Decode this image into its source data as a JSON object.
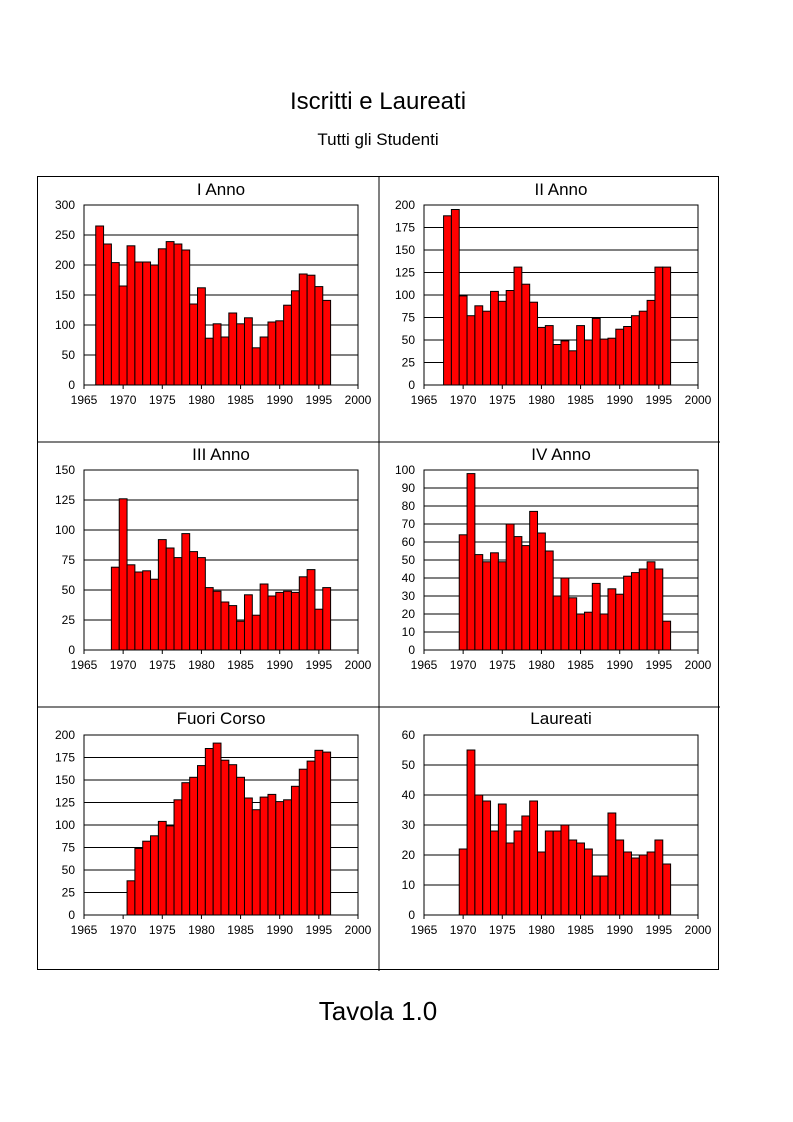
{
  "page": {
    "title": "Iscritti e Laureati",
    "subtitle": "Tutti gli Studenti",
    "footer": "Tavola 1.0"
  },
  "colors": {
    "bar_fill": "#ff0000",
    "bar_stroke": "#000000",
    "grid": "#000000"
  },
  "chart_data": [
    {
      "type": "bar",
      "title": "I Anno",
      "x": [
        1967,
        1968,
        1969,
        1970,
        1971,
        1972,
        1973,
        1974,
        1975,
        1976,
        1977,
        1978,
        1979,
        1980,
        1981,
        1982,
        1983,
        1984,
        1985,
        1986,
        1987,
        1988,
        1989,
        1990,
        1991,
        1992,
        1993,
        1994,
        1995,
        1996
      ],
      "values": [
        265,
        235,
        204,
        165,
        232,
        205,
        205,
        200,
        227,
        239,
        235,
        225,
        135,
        162,
        78,
        102,
        80,
        120,
        102,
        112,
        62,
        80,
        105,
        107,
        133,
        157,
        185,
        183,
        164,
        141
      ],
      "xlim": [
        1965,
        2000
      ],
      "ylim": [
        0,
        300
      ],
      "xticks": [
        1965,
        1970,
        1975,
        1980,
        1985,
        1990,
        1995,
        2000
      ],
      "yticks": [
        0,
        50,
        100,
        150,
        200,
        250,
        300
      ],
      "grid": true
    },
    {
      "type": "bar",
      "title": "II Anno",
      "x": [
        1968,
        1969,
        1970,
        1971,
        1972,
        1973,
        1974,
        1975,
        1976,
        1977,
        1978,
        1979,
        1980,
        1981,
        1982,
        1983,
        1984,
        1985,
        1986,
        1987,
        1988,
        1989,
        1990,
        1991,
        1992,
        1993,
        1994,
        1995,
        1996
      ],
      "values": [
        188,
        195,
        99,
        77,
        88,
        82,
        104,
        93,
        105,
        131,
        112,
        92,
        64,
        66,
        45,
        49,
        38,
        66,
        50,
        74,
        51,
        52,
        62,
        65,
        77,
        82,
        94,
        131,
        131
      ],
      "xlim": [
        1965,
        2000
      ],
      "ylim": [
        0,
        200
      ],
      "xticks": [
        1965,
        1970,
        1975,
        1980,
        1985,
        1990,
        1995,
        2000
      ],
      "yticks": [
        0,
        25,
        50,
        75,
        100,
        125,
        150,
        175,
        200
      ],
      "grid": true
    },
    {
      "type": "bar",
      "title": "III Anno",
      "x": [
        1969,
        1970,
        1971,
        1972,
        1973,
        1974,
        1975,
        1976,
        1977,
        1978,
        1979,
        1980,
        1981,
        1982,
        1983,
        1984,
        1985,
        1986,
        1987,
        1988,
        1989,
        1990,
        1991,
        1992,
        1993,
        1994,
        1995,
        1996
      ],
      "values": [
        69,
        126,
        71,
        65,
        66,
        59,
        92,
        85,
        77,
        97,
        82,
        77,
        52,
        49,
        40,
        37,
        24,
        46,
        29,
        55,
        45,
        48,
        49,
        48,
        61,
        67,
        34,
        52
      ],
      "xlim": [
        1965,
        2000
      ],
      "ylim": [
        0,
        150
      ],
      "xticks": [
        1965,
        1970,
        1975,
        1980,
        1985,
        1990,
        1995,
        2000
      ],
      "yticks": [
        0,
        25,
        50,
        75,
        100,
        125,
        150
      ],
      "grid": true
    },
    {
      "type": "bar",
      "title": "IV Anno",
      "x": [
        1970,
        1971,
        1972,
        1973,
        1974,
        1975,
        1976,
        1977,
        1978,
        1979,
        1980,
        1981,
        1982,
        1983,
        1984,
        1985,
        1986,
        1987,
        1988,
        1989,
        1990,
        1991,
        1992,
        1993,
        1994,
        1995,
        1996
      ],
      "values": [
        64,
        98,
        53,
        49,
        54,
        49,
        70,
        63,
        58,
        77,
        65,
        55,
        30,
        40,
        29,
        20,
        21,
        37,
        20,
        34,
        31,
        41,
        43,
        45,
        49,
        45,
        16
      ],
      "xlim": [
        1965,
        2000
      ],
      "ylim": [
        0,
        100
      ],
      "xticks": [
        1965,
        1970,
        1975,
        1980,
        1985,
        1990,
        1995,
        2000
      ],
      "yticks": [
        0,
        10,
        20,
        30,
        40,
        50,
        60,
        70,
        80,
        90,
        100
      ],
      "grid": true
    },
    {
      "type": "bar",
      "title": "Fuori Corso",
      "x": [
        1971,
        1972,
        1973,
        1974,
        1975,
        1976,
        1977,
        1978,
        1979,
        1980,
        1981,
        1982,
        1983,
        1984,
        1985,
        1986,
        1987,
        1988,
        1989,
        1990,
        1991,
        1992,
        1993,
        1994,
        1995,
        1996
      ],
      "values": [
        38,
        74,
        82,
        88,
        104,
        99,
        128,
        147,
        153,
        166,
        185,
        191,
        172,
        167,
        153,
        130,
        117,
        131,
        134,
        126,
        128,
        143,
        162,
        171,
        183,
        181
      ],
      "xlim": [
        1965,
        2000
      ],
      "ylim": [
        0,
        200
      ],
      "xticks": [
        1965,
        1970,
        1975,
        1980,
        1985,
        1990,
        1995,
        2000
      ],
      "yticks": [
        0,
        25,
        50,
        75,
        100,
        125,
        150,
        175,
        200
      ],
      "grid": true
    },
    {
      "type": "bar",
      "title": "Laureati",
      "x": [
        1970,
        1971,
        1972,
        1973,
        1974,
        1975,
        1976,
        1977,
        1978,
        1979,
        1980,
        1981,
        1982,
        1983,
        1984,
        1985,
        1986,
        1987,
        1988,
        1989,
        1990,
        1991,
        1992,
        1993,
        1994,
        1995,
        1996
      ],
      "values": [
        22,
        55,
        40,
        38,
        28,
        37,
        24,
        28,
        33,
        38,
        21,
        28,
        28,
        30,
        25,
        24,
        22,
        13,
        13,
        34,
        25,
        21,
        19,
        20,
        21,
        25,
        17
      ],
      "xlim": [
        1965,
        2000
      ],
      "ylim": [
        0,
        60
      ],
      "xticks": [
        1965,
        1970,
        1975,
        1980,
        1985,
        1990,
        1995,
        2000
      ],
      "yticks": [
        0,
        10,
        20,
        30,
        40,
        50,
        60
      ],
      "grid": true
    }
  ]
}
